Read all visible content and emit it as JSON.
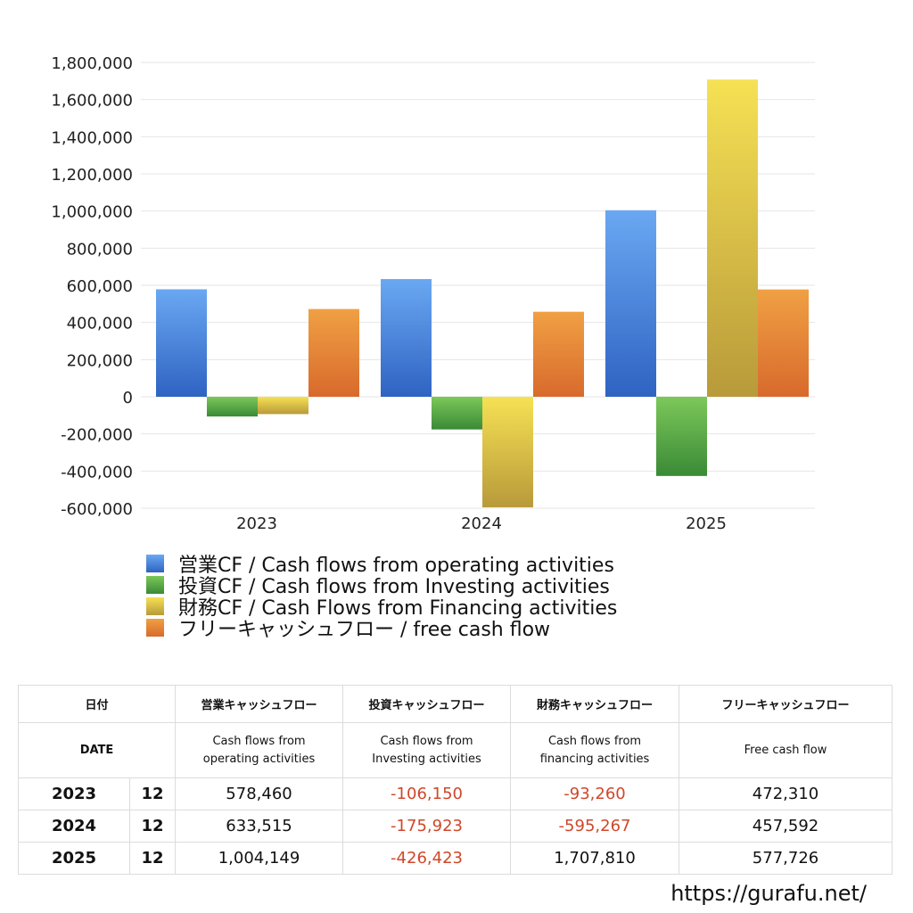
{
  "chart_data": {
    "type": "bar",
    "categories": [
      "2023",
      "2024",
      "2025"
    ],
    "series": [
      {
        "name": "営業CF / Cash flows from operating activities",
        "values": [
          578460,
          633515,
          1004149
        ]
      },
      {
        "name": "投資CF / Cash flows from Investing activities",
        "values": [
          -106150,
          -175923,
          -426423
        ]
      },
      {
        "name": "財務CF / Cash Flows from Financing activities",
        "values": [
          -93260,
          -595267,
          1707810
        ]
      },
      {
        "name": "フリーキャッシュフロー / free cash flow",
        "values": [
          472310,
          457592,
          577726
        ]
      }
    ],
    "ylim": [
      -600000,
      1800000
    ],
    "yticks": [
      -600000,
      -400000,
      -200000,
      0,
      200000,
      400000,
      600000,
      800000,
      1000000,
      1200000,
      1400000,
      1600000,
      1800000
    ],
    "ytick_labels": [
      "-600,000",
      "-400,000",
      "-200,000",
      "0",
      "200,000",
      "400,000",
      "600,000",
      "800,000",
      "1,000,000",
      "1,200,000",
      "1,400,000",
      "1,600,000",
      "1,800,000"
    ],
    "grid": true,
    "legend_position": "bottom-left",
    "colors": {
      "operating": [
        "#6aa8f2",
        "#2f63c2"
      ],
      "investing": [
        "#7cc85a",
        "#3a8a36"
      ],
      "financing": [
        "#f6e154",
        "#b89a3a"
      ],
      "free": [
        "#f0a044",
        "#d86a2c"
      ]
    }
  },
  "table": {
    "headers_ja": [
      "日付",
      "営業キャッシュフロー",
      "投資キャッシュフロー",
      "財務キャッシュフロー",
      "フリーキャッシュフロー"
    ],
    "headers_en": [
      "DATE",
      "Cash flows from\noperating activities",
      "Cash flows from\nInvesting activities",
      "Cash flows from\nfinancing activities",
      "Free cash flow"
    ],
    "rows": [
      {
        "year": "2023",
        "month": "12",
        "operating": "578,460",
        "investing": "-106,150",
        "financing": "-93,260",
        "free": "472,310"
      },
      {
        "year": "2024",
        "month": "12",
        "operating": "633,515",
        "investing": "-175,923",
        "financing": "-595,267",
        "free": "457,592"
      },
      {
        "year": "2025",
        "month": "12",
        "operating": "1,004,149",
        "investing": "-426,423",
        "financing": "1,707,810",
        "free": "577,726"
      }
    ]
  },
  "site_url": "https://gurafu.net/"
}
